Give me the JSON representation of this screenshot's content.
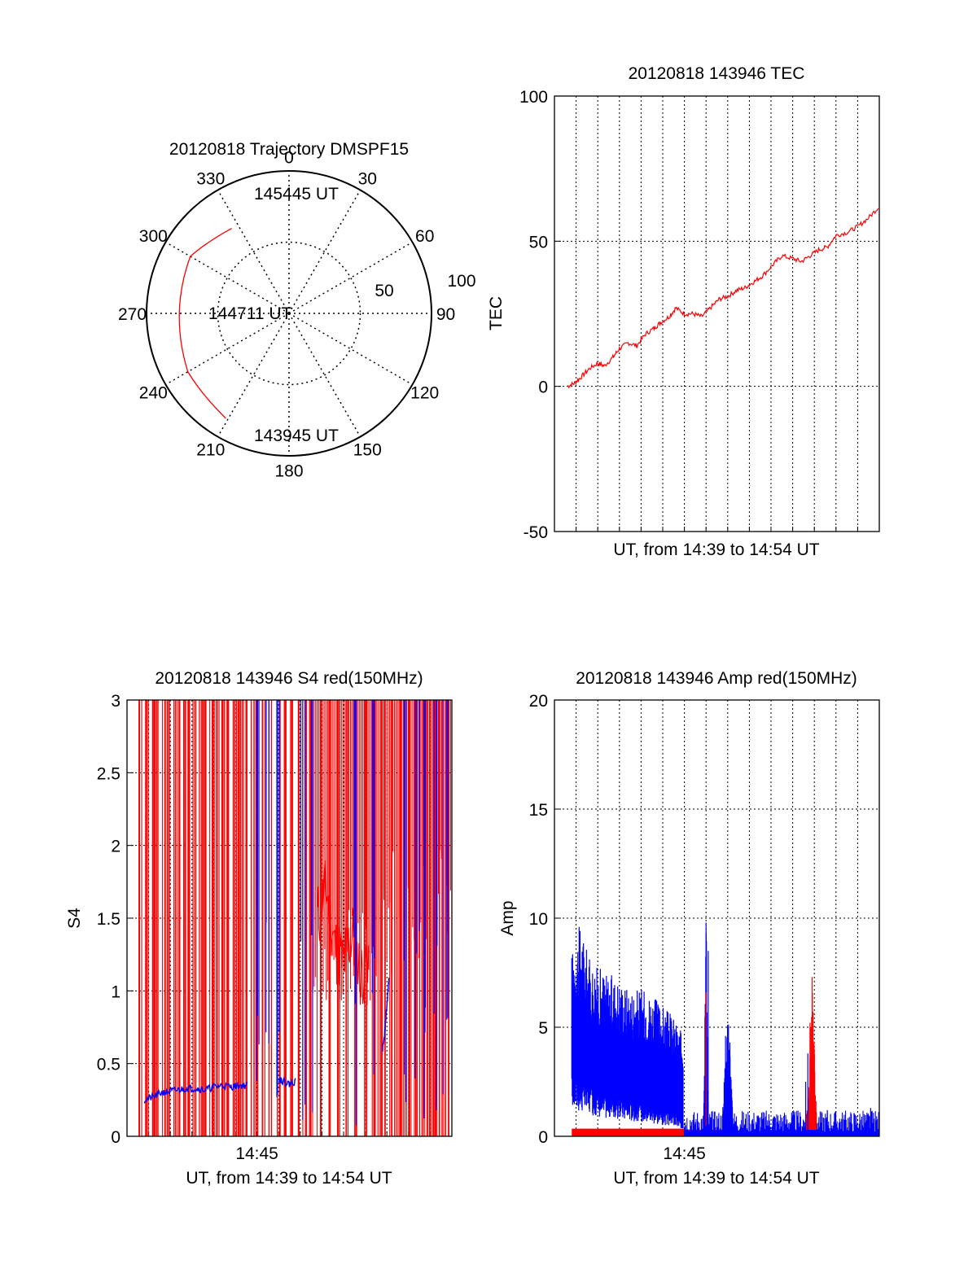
{
  "figure": {
    "background": "#ffffff",
    "colors": {
      "red": "#ff0000",
      "blue": "#0000ff",
      "axis": "#000000",
      "grid": "#000000"
    }
  },
  "chart_data": [
    {
      "id": "trajectory",
      "type": "polar",
      "title": "20120818 Trajectory DMSPF15",
      "azimuth_labels": [
        "0",
        "30",
        "60",
        "90",
        "120",
        "150",
        "180",
        "210",
        "240",
        "270",
        "300",
        "330"
      ],
      "radial_labels": [
        "50",
        "100"
      ],
      "elevation_rings": [
        50,
        100
      ],
      "track_color": "#ff0000",
      "track": [
        {
          "az": 326,
          "r": 72,
          "label": "145445 UT"
        },
        {
          "az": 300,
          "r": 80
        },
        {
          "az": 270,
          "r": 77,
          "label": "144711 UT"
        },
        {
          "az": 240,
          "r": 82
        },
        {
          "az": 211,
          "r": 86,
          "label": "143945 UT"
        }
      ],
      "annotations": [
        "145445 UT",
        "144711 UT",
        "143945 UT"
      ]
    },
    {
      "id": "tec",
      "type": "line",
      "title": "20120818 143946 TEC",
      "xlabel": "UT, from 14:39 to 14:54 UT",
      "ylabel": "TEC",
      "xlim": [
        0,
        15
      ],
      "ylim": [
        -50,
        100
      ],
      "yticks": [
        "-50",
        "0",
        "50",
        "100"
      ],
      "grid": true,
      "series": [
        {
          "color": "#ff0000",
          "x": [
            0.6,
            0.9,
            1.2,
            1.6,
            2.0,
            2.3,
            2.7,
            3.0,
            3.4,
            3.8,
            4.2,
            4.6,
            4.9,
            5.3,
            5.6,
            6.0,
            6.4,
            6.8,
            7.2,
            7.6,
            8.0,
            8.4,
            8.8,
            9.2,
            9.6,
            10.1,
            10.5,
            11.0,
            11.4,
            11.8,
            12.2,
            12.6,
            13.0,
            13.5,
            14.0,
            14.5,
            15.0
          ],
          "y": [
            0,
            1,
            3,
            6,
            8,
            7,
            10,
            13,
            15,
            14,
            18,
            20,
            22,
            24,
            27,
            25,
            25,
            24,
            27,
            30,
            31,
            33,
            34,
            36,
            38,
            42,
            45,
            44,
            43,
            45,
            47,
            48,
            52,
            53,
            55,
            58,
            62
          ]
        }
      ]
    },
    {
      "id": "s4",
      "type": "line",
      "title": "20120818 143946 S4 red(150MHz)",
      "xlabel": "UT, from 14:39 to 14:54 UT",
      "ylabel": "S4",
      "xlim": [
        0,
        15
      ],
      "ylim": [
        0,
        3
      ],
      "xticks": [
        {
          "x": 6,
          "label": "14:45"
        }
      ],
      "yticks": [
        "0",
        "0.5",
        "1",
        "1.5",
        "2",
        "2.5",
        "3"
      ],
      "grid": true,
      "red_spikes_x": [
        0.6,
        0.9,
        1.2,
        1.4,
        1.7,
        1.9,
        2.2,
        2.4,
        2.7,
        2.9,
        3.1,
        3.4,
        3.6,
        3.9,
        4.1,
        4.3,
        4.5,
        4.7,
        4.9,
        5.1,
        5.3,
        5.5,
        5.8,
        6.0,
        6.3,
        6.6,
        7.0,
        7.3,
        7.6,
        7.9,
        8.2,
        8.5,
        9.0,
        9.4,
        9.8,
        10.2,
        10.6,
        11.0,
        11.4,
        11.8,
        12.2,
        12.6,
        13.0,
        13.3,
        13.6,
        13.9,
        14.2,
        14.5,
        14.8
      ],
      "red_band": {
        "x": [
          8.8,
          9.2,
          9.6,
          10.0,
          10.4,
          10.8,
          11.2
        ],
        "y": [
          1.5,
          1.7,
          1.3,
          1.2,
          1.4,
          1.1,
          1.3
        ]
      },
      "series": [
        {
          "color": "#0000ff",
          "x": [
            0.8,
            1.2,
            1.6,
            2.0,
            2.4,
            2.8,
            3.2,
            3.6,
            4.0,
            4.4,
            4.8,
            5.2,
            5.6
          ],
          "y": [
            0.25,
            0.27,
            0.3,
            0.31,
            0.32,
            0.33,
            0.33,
            0.32,
            0.34,
            0.35,
            0.34,
            0.35,
            0.35
          ]
        },
        {
          "color": "#0000ff",
          "x": [
            7.0,
            7.2,
            7.5,
            7.8
          ],
          "y": [
            0.4,
            0.38,
            0.36,
            0.38
          ]
        },
        {
          "color": "#0000ff",
          "x": [
            11.8,
            11.9,
            12.0,
            12.1
          ],
          "y": [
            0.6,
            0.7,
            0.9,
            1.1
          ]
        }
      ],
      "blue_spikes_x": [
        6.1,
        6.5,
        7.0,
        8.1,
        8.6,
        10.5,
        11.3,
        12.9,
        13.4,
        13.8,
        14.3,
        14.7
      ]
    },
    {
      "id": "amp",
      "type": "line",
      "title": "20120818 143946 Amp red(150MHz)",
      "xlabel": "UT, from 14:39 to 14:54 UT",
      "ylabel": "Amp",
      "xlim": [
        0,
        15
      ],
      "ylim": [
        0,
        20
      ],
      "xticks": [
        {
          "x": 6,
          "label": "14:45"
        }
      ],
      "yticks": [
        "0",
        "5",
        "10",
        "15",
        "20"
      ],
      "grid": true,
      "series": [
        {
          "name_hidden": true,
          "color": "#0000ff",
          "envelope_x": [
            0.8,
            1.2,
            1.6,
            2.0,
            2.5,
            3.0,
            3.5,
            4.0,
            4.5,
            5.0,
            5.5,
            6.0
          ],
          "envelope_high": [
            8.5,
            9.8,
            8.2,
            7.8,
            7.5,
            7.2,
            6.8,
            6.8,
            6.5,
            6.0,
            5.5,
            4.5
          ],
          "envelope_low": [
            2.5,
            2.2,
            2.0,
            1.8,
            1.6,
            1.5,
            1.4,
            1.3,
            1.2,
            1.0,
            0.9,
            0.6
          ]
        },
        {
          "color": "#0000ff",
          "spikes": [
            {
              "x": 7.0,
              "y": 9.8
            },
            {
              "x": 7.1,
              "y": 8.5
            },
            {
              "x": 7.9,
              "y": 4.6
            },
            {
              "x": 8.0,
              "y": 5.0
            },
            {
              "x": 8.1,
              "y": 4.3
            },
            {
              "x": 11.6,
              "y": 2.5
            },
            {
              "x": 11.7,
              "y": 3.8
            },
            {
              "x": 12.6,
              "y": 1.2
            },
            {
              "x": 14.6,
              "y": 1.3
            }
          ]
        },
        {
          "color": "#ff0000",
          "spikes": [
            {
              "x": 11.9,
              "y": 7.3
            },
            {
              "x": 11.8,
              "y": 5.2
            },
            {
              "x": 12.0,
              "y": 4.0
            },
            {
              "x": 7.0,
              "y": 6.6
            }
          ]
        }
      ],
      "red_baseline": {
        "x": [
          0.8,
          6.0
        ],
        "y": 0.25
      },
      "blue_floor": {
        "x": [
          6.0,
          15.0
        ],
        "y_low": 0.2,
        "y_high": 1.2
      }
    }
  ]
}
